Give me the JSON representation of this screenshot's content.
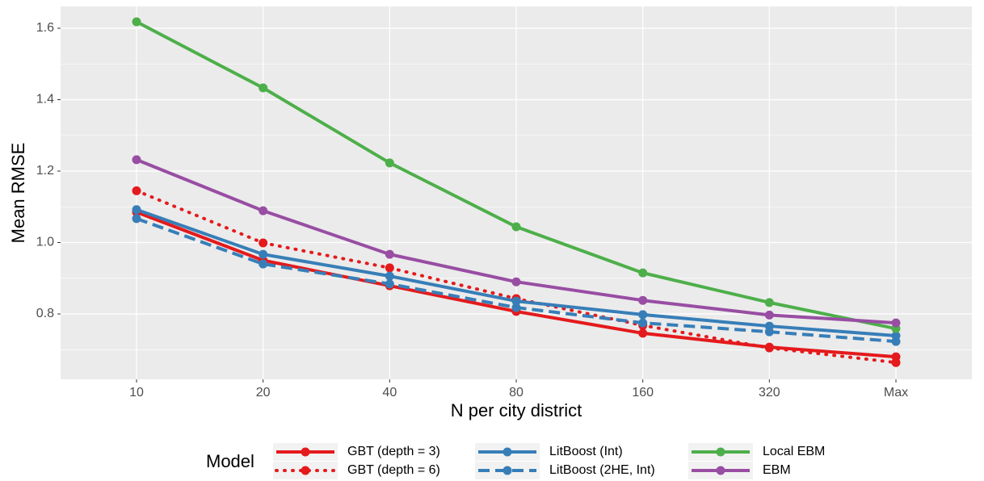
{
  "chart_data": {
    "type": "line",
    "x_label": "N per city district",
    "y_label": "Mean RMSE",
    "categories": [
      "10",
      "20",
      "40",
      "80",
      "160",
      "320",
      "Max"
    ],
    "ylim": [
      0.617,
      1.661
    ],
    "yticks": [
      0.8,
      {
        "value": 1,
        "label": "1.0"
      },
      1.2,
      1.4,
      1.6
    ],
    "minor_yticks": [
      0.7,
      0.9,
      1.1,
      1.3,
      1.5
    ],
    "grid": true,
    "legend_title": "Model",
    "legend_position": "bottom",
    "series": [
      {
        "name": "GBT (depth = 3)",
        "color": "#e41a1c",
        "linetype": "solid",
        "values": [
          1.085,
          0.95,
          0.879,
          0.807,
          0.746,
          0.707,
          0.68
        ]
      },
      {
        "name": "GBT (depth = 6)",
        "color": "#e41a1c",
        "linetype": "dotted",
        "values": [
          1.145,
          0.999,
          0.929,
          0.843,
          0.768,
          0.705,
          0.664
        ]
      },
      {
        "name": "LitBoost (Int)",
        "color": "#377eb8",
        "linetype": "solid",
        "values": [
          1.092,
          0.967,
          0.906,
          0.836,
          0.798,
          0.766,
          0.739
        ]
      },
      {
        "name": "LitBoost (2HE, Int)",
        "color": "#377eb8",
        "linetype": "dashed",
        "values": [
          1.067,
          0.94,
          0.884,
          0.818,
          0.775,
          0.75,
          0.723
        ]
      },
      {
        "name": "Local EBM",
        "color": "#4daf4a",
        "linetype": "solid",
        "values": [
          1.618,
          1.433,
          1.223,
          1.044,
          0.915,
          0.832,
          0.759
        ]
      },
      {
        "name": "EBM",
        "color": "#984ea3",
        "linetype": "solid",
        "values": [
          1.232,
          1.089,
          0.967,
          0.89,
          0.838,
          0.797,
          0.775
        ]
      }
    ]
  }
}
